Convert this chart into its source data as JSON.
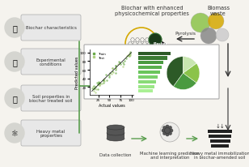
{
  "title_top_center": "Biochar with enhanced\nphysicochemical properties",
  "title_top_right": "Biomass\nwaste",
  "label_pyrolysis": "Pyrolysis",
  "label_data_collection": "Data collection",
  "label_ml": "Machine learning prediction\nand interpretation",
  "label_hm": "heavy metal immobilization\nin biochar-amended soil",
  "left_labels": [
    "Biochar characteristics",
    "Experimental\nconditions",
    "Soil properties in\nbiochar treated soil",
    "Heavy metal\nproperties"
  ],
  "bg_color": "#f5f5f0",
  "green_dark": "#3a6b35",
  "green_mid": "#5a9e4e",
  "green_light": "#8bc34a",
  "box_color": "#e8e8e8",
  "scatter_train_color": "#6aaa4a",
  "scatter_test_color": "#b8d98a",
  "bar_colors": [
    "#2d5a27",
    "#3a7a32",
    "#4a9a40",
    "#5ab04e",
    "#6ac55c",
    "#7ad06a",
    "#8adb78",
    "#9ae686",
    "#aaf094"
  ],
  "pie_colors": [
    "#2d5a27",
    "#4a9a40",
    "#8bc34a",
    "#c8e6b0"
  ],
  "pie_sizes": [
    40,
    25,
    20,
    15
  ],
  "arrow_color": "#5a9e4e",
  "scatter_n": 60,
  "bar_values": [
    9,
    8,
    7,
    6.5,
    6,
    5.5,
    5,
    4.5,
    4
  ],
  "bar_labels": [
    "",
    "",
    "",
    "",
    "",
    "",
    "",
    "",
    ""
  ]
}
